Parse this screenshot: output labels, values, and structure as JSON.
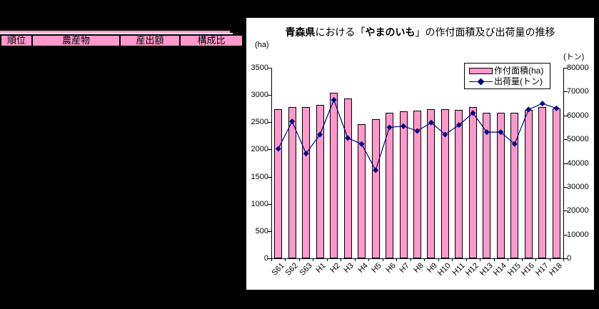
{
  "table": {
    "columns": [
      "順位",
      "農産物",
      "産出額",
      "構成比"
    ]
  },
  "chart": {
    "title_parts": [
      {
        "text": "青森県",
        "bold": true
      },
      {
        "text": "における「",
        "bold": false
      },
      {
        "text": "やまのいも",
        "bold": true
      },
      {
        "text": "」の作付面積及び出荷量の推移",
        "bold": false
      }
    ],
    "left_axis_unit": "(ha)",
    "right_axis_unit": "(トン)",
    "legend": [
      {
        "label": "作付面積(ha)",
        "type": "bar",
        "color": "#FF99CC"
      },
      {
        "label": "出荷量(トン)",
        "type": "line",
        "color": "#000080"
      }
    ]
  },
  "chart_data": {
    "type": "combo-bar-line",
    "title": "青森県における「やまのいも」の作付面積及び出荷量の推移",
    "categories": [
      "S61",
      "S62",
      "S63",
      "H1",
      "H2",
      "H3",
      "H4",
      "H5",
      "H6",
      "H7",
      "H8",
      "H9",
      "H10",
      "H11",
      "H12",
      "H13",
      "H14",
      "H15",
      "H16",
      "H17",
      "H18"
    ],
    "series": [
      {
        "name": "作付面積(ha)",
        "type": "bar",
        "axis": "left",
        "color": "#FF99CC",
        "values": [
          2740,
          2780,
          2780,
          2820,
          3040,
          2930,
          2470,
          2560,
          2670,
          2700,
          2720,
          2740,
          2740,
          2730,
          2780,
          2680,
          2680,
          2680,
          2730,
          2780,
          2750
        ]
      },
      {
        "name": "出荷量(トン)",
        "type": "line",
        "axis": "right",
        "color": "#000080",
        "values": [
          46000,
          57500,
          44000,
          52000,
          66500,
          50500,
          48000,
          37000,
          55000,
          55500,
          53500,
          57000,
          52000,
          56000,
          61000,
          53000,
          53000,
          48000,
          62500,
          65000,
          63000
        ]
      }
    ],
    "left_ylim": [
      0,
      3500
    ],
    "left_ticks": [
      0,
      500,
      1000,
      1500,
      2000,
      2500,
      3000,
      3500
    ],
    "right_ylim": [
      0,
      80000
    ],
    "right_ticks": [
      0,
      10000,
      20000,
      30000,
      40000,
      50000,
      60000,
      70000,
      80000
    ],
    "left_ylabel": "(ha)",
    "right_ylabel": "(トン)",
    "grid": false,
    "legend_position": "top-right-inside"
  }
}
